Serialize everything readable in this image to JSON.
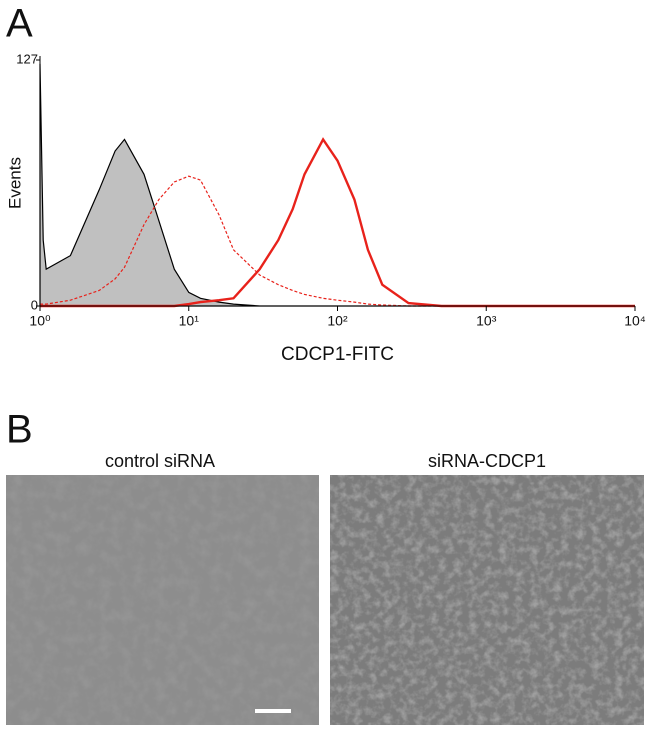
{
  "panels": {
    "a": "A",
    "b": "B"
  },
  "chart_data": {
    "type": "histogram-overlay",
    "xlabel": "CDCP1-FITC",
    "ylabel": "Events",
    "xscale": "log",
    "xlim": [
      1,
      10000
    ],
    "ylim": [
      0,
      127
    ],
    "xticks": [
      {
        "value": 1,
        "label": "10⁰"
      },
      {
        "value": 10,
        "label": "10¹"
      },
      {
        "value": 100,
        "label": "10²"
      },
      {
        "value": 1000,
        "label": "10³"
      },
      {
        "value": 10000,
        "label": "10⁴"
      }
    ],
    "yticks": [
      0,
      127
    ],
    "x": [
      1,
      1.05,
      1.1,
      1.6,
      2.5,
      3.2,
      3.7,
      5,
      6.3,
      8,
      10,
      12,
      16,
      20,
      30,
      40,
      50,
      60,
      80,
      100,
      130,
      160,
      200,
      300,
      500,
      10000
    ],
    "series": [
      {
        "style": "filled",
        "color": "#c0c0c0",
        "stroke": "#000000",
        "values": [
          125,
          34,
          19,
          26,
          60,
          80,
          86,
          68,
          44,
          19,
          7,
          4,
          2,
          1,
          0,
          0,
          0,
          0,
          0,
          0,
          0,
          0,
          0,
          0,
          0,
          0
        ]
      },
      {
        "style": "dashed",
        "color": "#e8221b",
        "values": [
          1,
          1,
          1,
          3,
          8,
          14,
          20,
          42,
          55,
          64,
          67,
          65,
          47,
          29,
          16,
          11,
          8,
          6,
          4,
          3,
          2,
          1,
          0.5,
          0,
          0,
          0
        ]
      },
      {
        "style": "solid",
        "color": "#e8221b",
        "values": [
          0,
          0,
          0,
          0,
          0,
          0,
          0,
          0,
          0,
          0,
          1,
          2,
          3,
          4,
          19,
          34,
          50,
          68,
          86,
          75,
          55,
          29,
          11,
          1.5,
          0,
          0
        ]
      }
    ]
  },
  "images": [
    {
      "title": "control siRNA"
    },
    {
      "title": "siRNA-CDCP1"
    }
  ]
}
